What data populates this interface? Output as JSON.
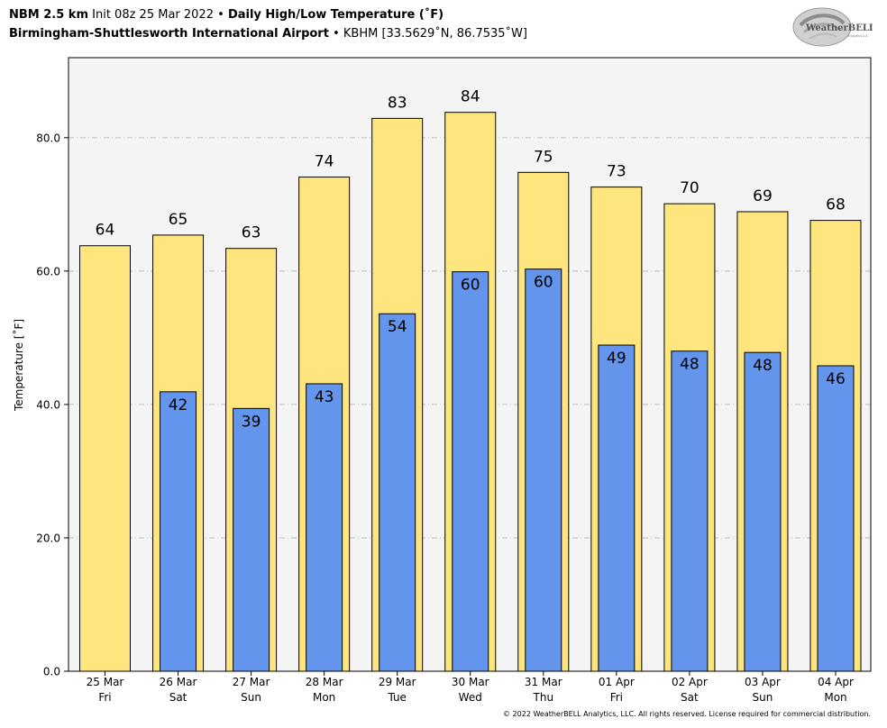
{
  "header": {
    "model": "NBM 2.5 km",
    "init": "Init 08z 25 Mar 2022",
    "sep": "•",
    "product": "Daily High/Low Temperature (˚F)",
    "station_name": "Birmingham-Shuttlesworth International Airport",
    "station_info": "KBHM [33.5629˚N, 86.7535˚W]"
  },
  "logo": {
    "text": "WeatherBELL",
    "subtext": "Analytics LLC"
  },
  "copyright": "© 2022 WeatherBELL Analytics, LLC. All rights reserved. License required for commercial distribution.",
  "colors": {
    "high": "#ffe57e",
    "low": "#6495ed",
    "plot_bg": "#f4f4f4",
    "grid": "#bdbdbd"
  },
  "chart_data": {
    "type": "bar",
    "ylabel": "Temperature [˚F]",
    "ylim": [
      0,
      92
    ],
    "yticks": [
      0,
      20,
      40,
      60,
      80
    ],
    "ytick_labels": [
      "0.0",
      "20.0",
      "40.0",
      "60.0",
      "80.0"
    ],
    "grid": true,
    "categories": [
      "25 Mar",
      "26 Mar",
      "27 Mar",
      "28 Mar",
      "29 Mar",
      "30 Mar",
      "31 Mar",
      "01 Apr",
      "02 Apr",
      "03 Apr",
      "04 Apr"
    ],
    "weekdays": [
      "Fri",
      "Sat",
      "Sun",
      "Mon",
      "Tue",
      "Wed",
      "Thu",
      "Fri",
      "Sat",
      "Sun",
      "Mon"
    ],
    "series": [
      {
        "values": [
          63.8,
          65.4,
          63.4,
          74.1,
          82.9,
          83.8,
          74.8,
          72.6,
          70.1,
          68.9,
          67.6
        ],
        "labels": [
          "64",
          "65",
          "63",
          "74",
          "83",
          "84",
          "75",
          "73",
          "70",
          "69",
          "68"
        ]
      },
      {
        "values": [
          null,
          41.9,
          39.4,
          43.1,
          53.6,
          59.9,
          60.3,
          48.9,
          48.0,
          47.8,
          45.8
        ],
        "labels": [
          "",
          "42",
          "39",
          "43",
          "54",
          "60",
          "60",
          "49",
          "48",
          "48",
          "46"
        ]
      }
    ]
  }
}
